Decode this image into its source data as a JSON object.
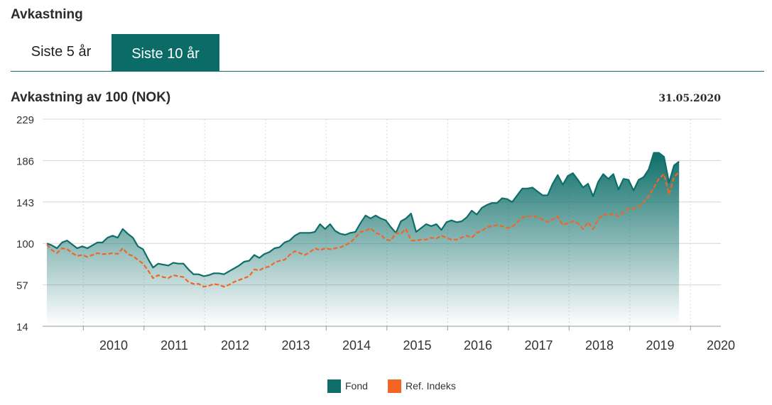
{
  "page": {
    "section_title": "Avkastning",
    "tabs": [
      {
        "label": "Siste 5 år",
        "active": false
      },
      {
        "label": "Siste 10 år",
        "active": true
      }
    ],
    "chart_title": "Avkastning av 100 (NOK)",
    "as_of_date": "31.05.2020"
  },
  "colors": {
    "accent": "#0b6b66",
    "fond": "#0e6e69",
    "ref_index": "#f26522"
  },
  "chart_data": {
    "type": "area",
    "title": "Avkastning av 100 (NOK)",
    "xlabel": "",
    "ylabel": "",
    "x_start": 2009.4,
    "x_step": 0.0833,
    "xlim": [
      2009.33,
      2020.5
    ],
    "ylim": [
      14,
      229
    ],
    "yticks": [
      14,
      57,
      100,
      143,
      186,
      229
    ],
    "xtick_labels": [
      "2010",
      "2011",
      "2012",
      "2013",
      "2014",
      "2015",
      "2016",
      "2017",
      "2018",
      "2019",
      "2020"
    ],
    "grid": true,
    "legend_position": "bottom",
    "series": [
      {
        "name": "Fond",
        "style": "area",
        "values": [
          100,
          98,
          95,
          101,
          103,
          99,
          95,
          97,
          95,
          98,
          101,
          101,
          106,
          108,
          106,
          115,
          110,
          106,
          97,
          94,
          84,
          75,
          79,
          78,
          77,
          80,
          79,
          79,
          73,
          68,
          68,
          66,
          67,
          69,
          69,
          68,
          71,
          74,
          77,
          81,
          82,
          88,
          85,
          89,
          91,
          95,
          96,
          101,
          103,
          108,
          111,
          111,
          111,
          112,
          120,
          115,
          120,
          113,
          110,
          109,
          111,
          112,
          121,
          129,
          126,
          129,
          126,
          124,
          117,
          111,
          123,
          126,
          131,
          112,
          116,
          120,
          118,
          120,
          114,
          122,
          124,
          122,
          123,
          127,
          134,
          130,
          137,
          140,
          142,
          142,
          147,
          146,
          143,
          150,
          157,
          157,
          158,
          154,
          150,
          150,
          162,
          171,
          161,
          170,
          173,
          166,
          158,
          162,
          149,
          164,
          172,
          167,
          172,
          156,
          167,
          166,
          155,
          166,
          169,
          177,
          194,
          194,
          190,
          163,
          181,
          185
        ],
        "color": "#0e6e69"
      },
      {
        "name": "Ref. Indeks",
        "style": "dashed-line",
        "values": [
          99,
          93,
          90,
          95,
          94,
          90,
          87,
          88,
          86,
          88,
          90,
          89,
          89,
          90,
          89,
          95,
          89,
          87,
          83,
          79,
          72,
          64,
          67,
          65,
          64,
          67,
          66,
          65,
          60,
          58,
          58,
          55,
          56,
          58,
          57,
          55,
          57,
          60,
          62,
          64,
          66,
          73,
          72,
          75,
          76,
          80,
          82,
          83,
          88,
          92,
          90,
          88,
          91,
          95,
          93,
          95,
          94,
          95,
          96,
          98,
          101,
          106,
          112,
          113,
          116,
          111,
          109,
          104,
          103,
          111,
          110,
          115,
          103,
          103,
          104,
          104,
          106,
          105,
          108,
          106,
          104,
          104,
          106,
          108,
          106,
          111,
          113,
          117,
          118,
          119,
          118,
          116,
          117,
          122,
          127,
          128,
          129,
          127,
          125,
          122,
          125,
          128,
          119,
          121,
          123,
          121,
          115,
          122,
          115,
          125,
          130,
          129,
          131,
          128,
          132,
          136,
          136,
          138,
          143,
          149,
          158,
          167,
          172,
          151,
          169,
          174
        ],
        "color": "#f26522"
      }
    ]
  }
}
